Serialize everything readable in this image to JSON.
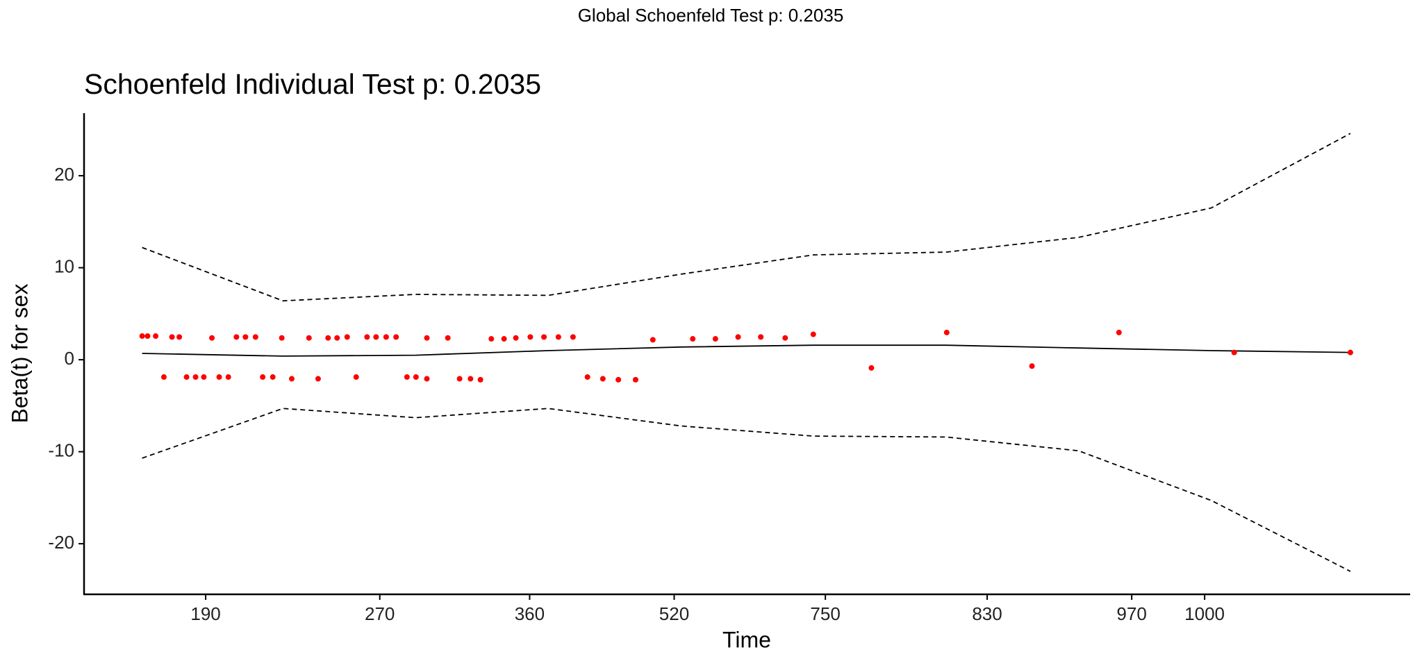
{
  "chart_data": {
    "type": "scatter",
    "suptitle": "Global Schoenfeld Test p: 0.2035",
    "title": "Schoenfeld Individual Test p: 0.2035",
    "x_label": "Time",
    "y_label": "Beta(t) for sex",
    "xlim": [
      0,
      100
    ],
    "ylim": [
      -25.5,
      26.8
    ],
    "xticks": [
      {
        "value": 9.17,
        "label": "190"
      },
      {
        "value": 22.3,
        "label": "270"
      },
      {
        "value": 33.6,
        "label": "360"
      },
      {
        "value": 44.5,
        "label": "520"
      },
      {
        "value": 55.9,
        "label": "750"
      },
      {
        "value": 68.1,
        "label": "830"
      },
      {
        "value": 79.0,
        "label": "970"
      },
      {
        "value": 84.5,
        "label": "1000"
      }
    ],
    "yticks": [
      -20,
      -10,
      0,
      10,
      20
    ],
    "color": "#ff0000",
    "x": [
      4.38,
      4.79,
      5.4,
      6.63,
      7.18,
      9.64,
      11.49,
      12.17,
      12.93,
      14.91,
      16.96,
      18.4,
      19.08,
      19.84,
      21.34,
      22.02,
      22.78,
      23.53,
      25.85,
      27.43,
      30.71,
      31.67,
      32.56,
      33.65,
      34.68,
      35.77,
      36.87,
      42.89,
      45.9,
      47.61,
      49.32,
      51.03,
      52.87,
      54.99,
      65.05,
      78.04,
      86.73,
      95.49,
      6.02,
      7.73,
      8.41,
      9.03,
      10.19,
      10.88,
      13.47,
      14.23,
      15.66,
      17.65,
      20.52,
      24.35,
      25.03,
      25.85,
      28.32,
      29.14,
      29.89,
      37.96,
      39.12,
      40.29,
      41.59,
      59.37,
      71.48
    ],
    "values": [
      2.57,
      2.57,
      2.57,
      2.47,
      2.47,
      2.37,
      2.47,
      2.47,
      2.47,
      2.37,
      2.37,
      2.37,
      2.37,
      2.47,
      2.47,
      2.47,
      2.47,
      2.47,
      2.37,
      2.37,
      2.27,
      2.27,
      2.37,
      2.47,
      2.47,
      2.47,
      2.47,
      2.17,
      2.27,
      2.27,
      2.47,
      2.47,
      2.37,
      2.76,
      2.96,
      2.96,
      0.79,
      0.79,
      -1.88,
      -1.88,
      -1.88,
      -1.88,
      -1.88,
      -1.88,
      -1.88,
      -1.88,
      -2.07,
      -2.07,
      -1.88,
      -1.88,
      -1.88,
      -2.07,
      -2.07,
      -2.07,
      -2.17,
      -1.88,
      -2.07,
      -2.17,
      -2.17,
      -0.89,
      -0.69
    ],
    "lines": [
      {
        "style": "solid",
        "x": [
          4.38,
          15,
          25,
          35,
          45,
          55,
          65,
          75,
          85,
          95.49
        ],
        "values": [
          0.69,
          0.39,
          0.49,
          0.99,
          1.38,
          1.58,
          1.58,
          1.28,
          0.99,
          0.79
        ]
      },
      {
        "style": "dashed",
        "x": [
          4.38,
          15,
          25,
          35,
          45,
          55,
          65,
          75,
          85,
          95.49
        ],
        "values": [
          12.2,
          6.4,
          7.1,
          7.0,
          9.3,
          11.4,
          11.7,
          13.3,
          16.5,
          24.6
        ]
      },
      {
        "style": "dashed",
        "x": [
          4.38,
          15,
          25,
          35,
          45,
          55,
          65,
          75,
          85,
          95.49
        ],
        "values": [
          -10.7,
          -5.3,
          -6.3,
          -5.3,
          -7.2,
          -8.3,
          -8.4,
          -9.9,
          -15.3,
          -23.0
        ]
      }
    ]
  }
}
